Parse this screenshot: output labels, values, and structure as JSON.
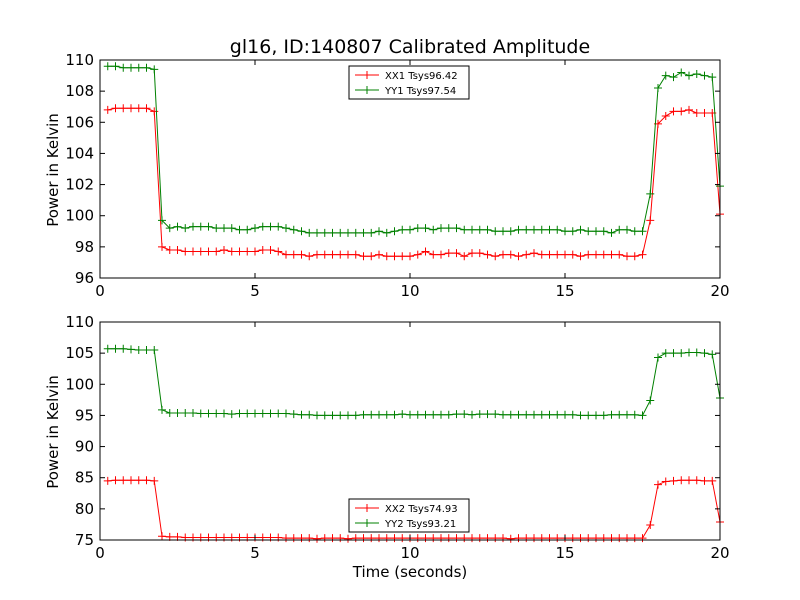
{
  "chart_data": [
    {
      "type": "line",
      "title": "gl16, ID:140807 Calibrated Amplitude",
      "xlabel": "",
      "ylabel": "Power in Kelvin",
      "xlim": [
        0,
        20
      ],
      "ylim": [
        96,
        110
      ],
      "xticks": [
        "0",
        "5",
        "10",
        "15",
        "20"
      ],
      "yticks": [
        "96",
        "98",
        "100",
        "102",
        "104",
        "106",
        "108",
        "110"
      ],
      "grid": false,
      "legend_position": "top-center",
      "x": [
        0.25,
        0.5,
        0.75,
        1.0,
        1.25,
        1.5,
        1.75,
        2.0,
        2.25,
        2.5,
        2.75,
        3.0,
        3.25,
        3.5,
        3.75,
        4.0,
        4.25,
        4.5,
        4.75,
        5.0,
        5.25,
        5.5,
        5.75,
        6.0,
        6.25,
        6.5,
        6.75,
        7.0,
        7.25,
        7.5,
        7.75,
        8.0,
        8.25,
        8.5,
        8.75,
        9.0,
        9.25,
        9.5,
        9.75,
        10.0,
        10.25,
        10.5,
        10.75,
        11.0,
        11.25,
        11.5,
        11.75,
        12.0,
        12.25,
        12.5,
        12.75,
        13.0,
        13.25,
        13.5,
        13.75,
        14.0,
        14.25,
        14.5,
        14.75,
        15.0,
        15.25,
        15.5,
        15.75,
        16.0,
        16.25,
        16.5,
        16.75,
        17.0,
        17.25,
        17.5,
        17.75,
        18.0,
        18.25,
        18.5,
        18.75,
        19.0,
        19.25,
        19.5,
        19.75,
        20.0
      ],
      "series": [
        {
          "name": "XX1 Tsys96.42",
          "color": "#ff0000",
          "values": [
            106.8,
            106.9,
            106.9,
            106.9,
            106.9,
            106.9,
            106.7,
            98.0,
            97.8,
            97.8,
            97.7,
            97.7,
            97.7,
            97.7,
            97.7,
            97.8,
            97.7,
            97.7,
            97.7,
            97.7,
            97.8,
            97.8,
            97.7,
            97.5,
            97.5,
            97.5,
            97.4,
            97.5,
            97.5,
            97.5,
            97.5,
            97.5,
            97.5,
            97.4,
            97.4,
            97.5,
            97.4,
            97.4,
            97.4,
            97.4,
            97.5,
            97.7,
            97.5,
            97.5,
            97.6,
            97.6,
            97.4,
            97.6,
            97.6,
            97.5,
            97.4,
            97.5,
            97.5,
            97.4,
            97.5,
            97.6,
            97.5,
            97.5,
            97.5,
            97.5,
            97.5,
            97.4,
            97.5,
            97.5,
            97.5,
            97.5,
            97.5,
            97.4,
            97.4,
            97.5,
            99.7,
            105.9,
            106.4,
            106.7,
            106.7,
            106.8,
            106.6,
            106.6,
            106.6,
            100.1
          ]
        },
        {
          "name": "YY1 Tsys97.54",
          "color": "#008000",
          "values": [
            109.6,
            109.6,
            109.5,
            109.5,
            109.5,
            109.5,
            109.4,
            99.7,
            99.2,
            99.3,
            99.2,
            99.3,
            99.3,
            99.3,
            99.2,
            99.2,
            99.2,
            99.1,
            99.1,
            99.2,
            99.3,
            99.3,
            99.3,
            99.2,
            99.1,
            99.0,
            98.9,
            98.9,
            98.9,
            98.9,
            98.9,
            98.9,
            98.9,
            98.9,
            98.9,
            99.0,
            98.9,
            99.0,
            99.1,
            99.1,
            99.2,
            99.2,
            99.1,
            99.2,
            99.2,
            99.2,
            99.1,
            99.1,
            99.1,
            99.1,
            99.0,
            99.0,
            99.0,
            99.1,
            99.1,
            99.1,
            99.1,
            99.1,
            99.1,
            99.0,
            99.0,
            99.1,
            99.0,
            99.0,
            99.0,
            98.9,
            99.1,
            99.1,
            99.0,
            99.0,
            101.4,
            108.2,
            109.0,
            108.9,
            109.2,
            109.0,
            109.1,
            109.0,
            108.9,
            101.9
          ]
        }
      ]
    },
    {
      "type": "line",
      "title": "",
      "xlabel": "Time (seconds)",
      "ylabel": "Power in Kelvin",
      "xlim": [
        0,
        20
      ],
      "ylim": [
        75,
        110
      ],
      "xticks": [
        "0",
        "5",
        "10",
        "15",
        "20"
      ],
      "yticks": [
        "75",
        "80",
        "85",
        "90",
        "95",
        "100",
        "105",
        "110"
      ],
      "grid": false,
      "legend_position": "bottom-center",
      "x": [
        0.25,
        0.5,
        0.75,
        1.0,
        1.25,
        1.5,
        1.75,
        2.0,
        2.25,
        2.5,
        2.75,
        3.0,
        3.25,
        3.5,
        3.75,
        4.0,
        4.25,
        4.5,
        4.75,
        5.0,
        5.25,
        5.5,
        5.75,
        6.0,
        6.25,
        6.5,
        6.75,
        7.0,
        7.25,
        7.5,
        7.75,
        8.0,
        8.25,
        8.5,
        8.75,
        9.0,
        9.25,
        9.5,
        9.75,
        10.0,
        10.25,
        10.5,
        10.75,
        11.0,
        11.25,
        11.5,
        11.75,
        12.0,
        12.25,
        12.5,
        12.75,
        13.0,
        13.25,
        13.5,
        13.75,
        14.0,
        14.25,
        14.5,
        14.75,
        15.0,
        15.25,
        15.5,
        15.75,
        16.0,
        16.25,
        16.5,
        16.75,
        17.0,
        17.25,
        17.5,
        17.75,
        18.0,
        18.25,
        18.5,
        18.75,
        19.0,
        19.25,
        19.5,
        19.75,
        20.0
      ],
      "series": [
        {
          "name": "XX2 Tsys74.93",
          "color": "#ff0000",
          "values": [
            84.5,
            84.6,
            84.6,
            84.6,
            84.6,
            84.6,
            84.5,
            75.6,
            75.5,
            75.5,
            75.4,
            75.4,
            75.4,
            75.4,
            75.4,
            75.4,
            75.4,
            75.4,
            75.4,
            75.4,
            75.4,
            75.4,
            75.4,
            75.3,
            75.3,
            75.3,
            75.3,
            75.2,
            75.3,
            75.3,
            75.3,
            75.2,
            75.3,
            75.3,
            75.3,
            75.3,
            75.3,
            75.3,
            75.3,
            75.3,
            75.3,
            75.3,
            75.3,
            75.3,
            75.3,
            75.3,
            75.3,
            75.3,
            75.3,
            75.3,
            75.3,
            75.3,
            75.2,
            75.3,
            75.3,
            75.3,
            75.3,
            75.3,
            75.3,
            75.3,
            75.3,
            75.3,
            75.3,
            75.3,
            75.3,
            75.3,
            75.3,
            75.3,
            75.3,
            75.3,
            77.4,
            83.9,
            84.4,
            84.5,
            84.6,
            84.6,
            84.6,
            84.5,
            84.5,
            77.9
          ]
        },
        {
          "name": "YY2 Tsys93.21",
          "color": "#008000",
          "values": [
            105.7,
            105.7,
            105.7,
            105.6,
            105.5,
            105.5,
            105.5,
            95.9,
            95.4,
            95.4,
            95.4,
            95.4,
            95.3,
            95.3,
            95.3,
            95.3,
            95.2,
            95.3,
            95.3,
            95.3,
            95.3,
            95.3,
            95.3,
            95.3,
            95.2,
            95.1,
            95.1,
            95.0,
            95.0,
            95.0,
            95.0,
            95.0,
            95.0,
            95.1,
            95.1,
            95.1,
            95.1,
            95.1,
            95.2,
            95.1,
            95.1,
            95.1,
            95.1,
            95.1,
            95.1,
            95.2,
            95.2,
            95.1,
            95.2,
            95.2,
            95.2,
            95.1,
            95.1,
            95.1,
            95.1,
            95.1,
            95.1,
            95.1,
            95.1,
            95.1,
            95.1,
            95.0,
            95.0,
            95.0,
            95.0,
            95.1,
            95.1,
            95.1,
            95.1,
            95.0,
            97.4,
            104.3,
            105.0,
            105.0,
            105.0,
            105.1,
            105.1,
            105.0,
            104.8,
            97.8
          ]
        }
      ]
    }
  ]
}
